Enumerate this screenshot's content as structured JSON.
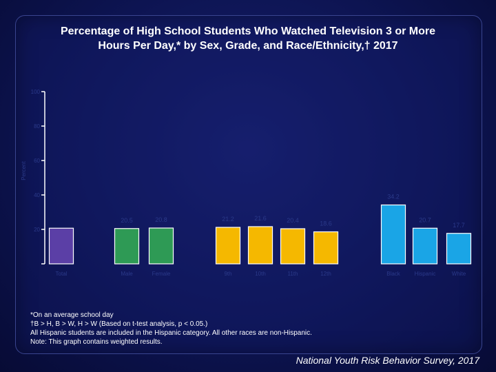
{
  "title_line1": "Percentage of High School Students Who Watched Television 3 or More",
  "title_line2": "Hours Per Day,* by Sex, Grade, and Race/Ethnicity,† 2017",
  "footnotes": [
    "*On an average school day",
    "†B > H, B > W, H > W (Based on t-test analysis, p < 0.05.)",
    "All Hispanic students are included in the Hispanic category.  All other races are non-Hispanic.",
    "Note: This graph contains weighted results."
  ],
  "source": "National Youth Risk Behavior Survey, 2017",
  "colors": {
    "Total": "#5b3fa6",
    "Sex": "#2e9a55",
    "Grade": "#f5b800",
    "Race/Ethnicity": "#1aa5e6",
    "axis": "#ffffff",
    "label": "#2b3a8a"
  },
  "chart_data": {
    "type": "bar",
    "title": "Percentage of High School Students Who Watched Television 3 or More Hours Per Day,* by Sex, Grade, and Race/Ethnicity,† 2017",
    "ylabel": "Percent",
    "ylim": [
      0,
      100
    ],
    "yticks": [
      0,
      20,
      40,
      60,
      80,
      100
    ],
    "grid": false,
    "categories": [
      "Total",
      "Male",
      "Female",
      "9th",
      "10th",
      "11th",
      "12th",
      "Black",
      "Hispanic",
      "White"
    ],
    "groups": [
      "Total",
      "Sex",
      "Sex",
      "Grade",
      "Grade",
      "Grade",
      "Grade",
      "Race/Ethnicity",
      "Race/Ethnicity",
      "Race/Ethnicity"
    ],
    "values": [
      20.7,
      20.5,
      20.8,
      21.2,
      21.6,
      20.4,
      18.6,
      34.2,
      20.7,
      17.7
    ],
    "value_labels": [
      "",
      "20.5",
      "20.8",
      "21.2",
      "21.6",
      "20.4",
      "18.6",
      "34.2",
      "20.7",
      "17.7"
    ]
  }
}
